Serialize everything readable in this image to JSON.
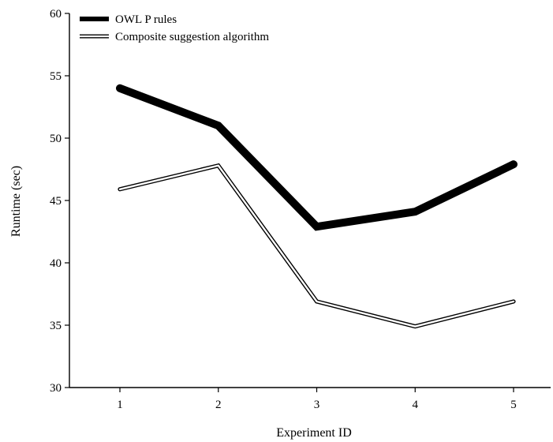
{
  "chart_data": {
    "type": "line",
    "xlabel": "Experiment ID",
    "ylabel": "Runtime (sec)",
    "x": [
      1,
      2,
      3,
      4,
      5
    ],
    "xticks": [
      "1",
      "2",
      "3",
      "4",
      "5"
    ],
    "ylim": [
      30,
      60
    ],
    "yticks": [
      "30",
      "35",
      "40",
      "45",
      "50",
      "55",
      "60"
    ],
    "grid": false,
    "legend": "top-left",
    "series": [
      {
        "name": "OWL P rules",
        "values": [
          54,
          51,
          42.9,
          44.1,
          47.9
        ],
        "color": "#000000",
        "style": "thick-solid"
      },
      {
        "name": "Composite suggestion algorithm",
        "values": [
          45.9,
          47.8,
          36.9,
          34.9,
          36.9
        ],
        "color": "#000000",
        "style": "double-outline"
      }
    ]
  }
}
